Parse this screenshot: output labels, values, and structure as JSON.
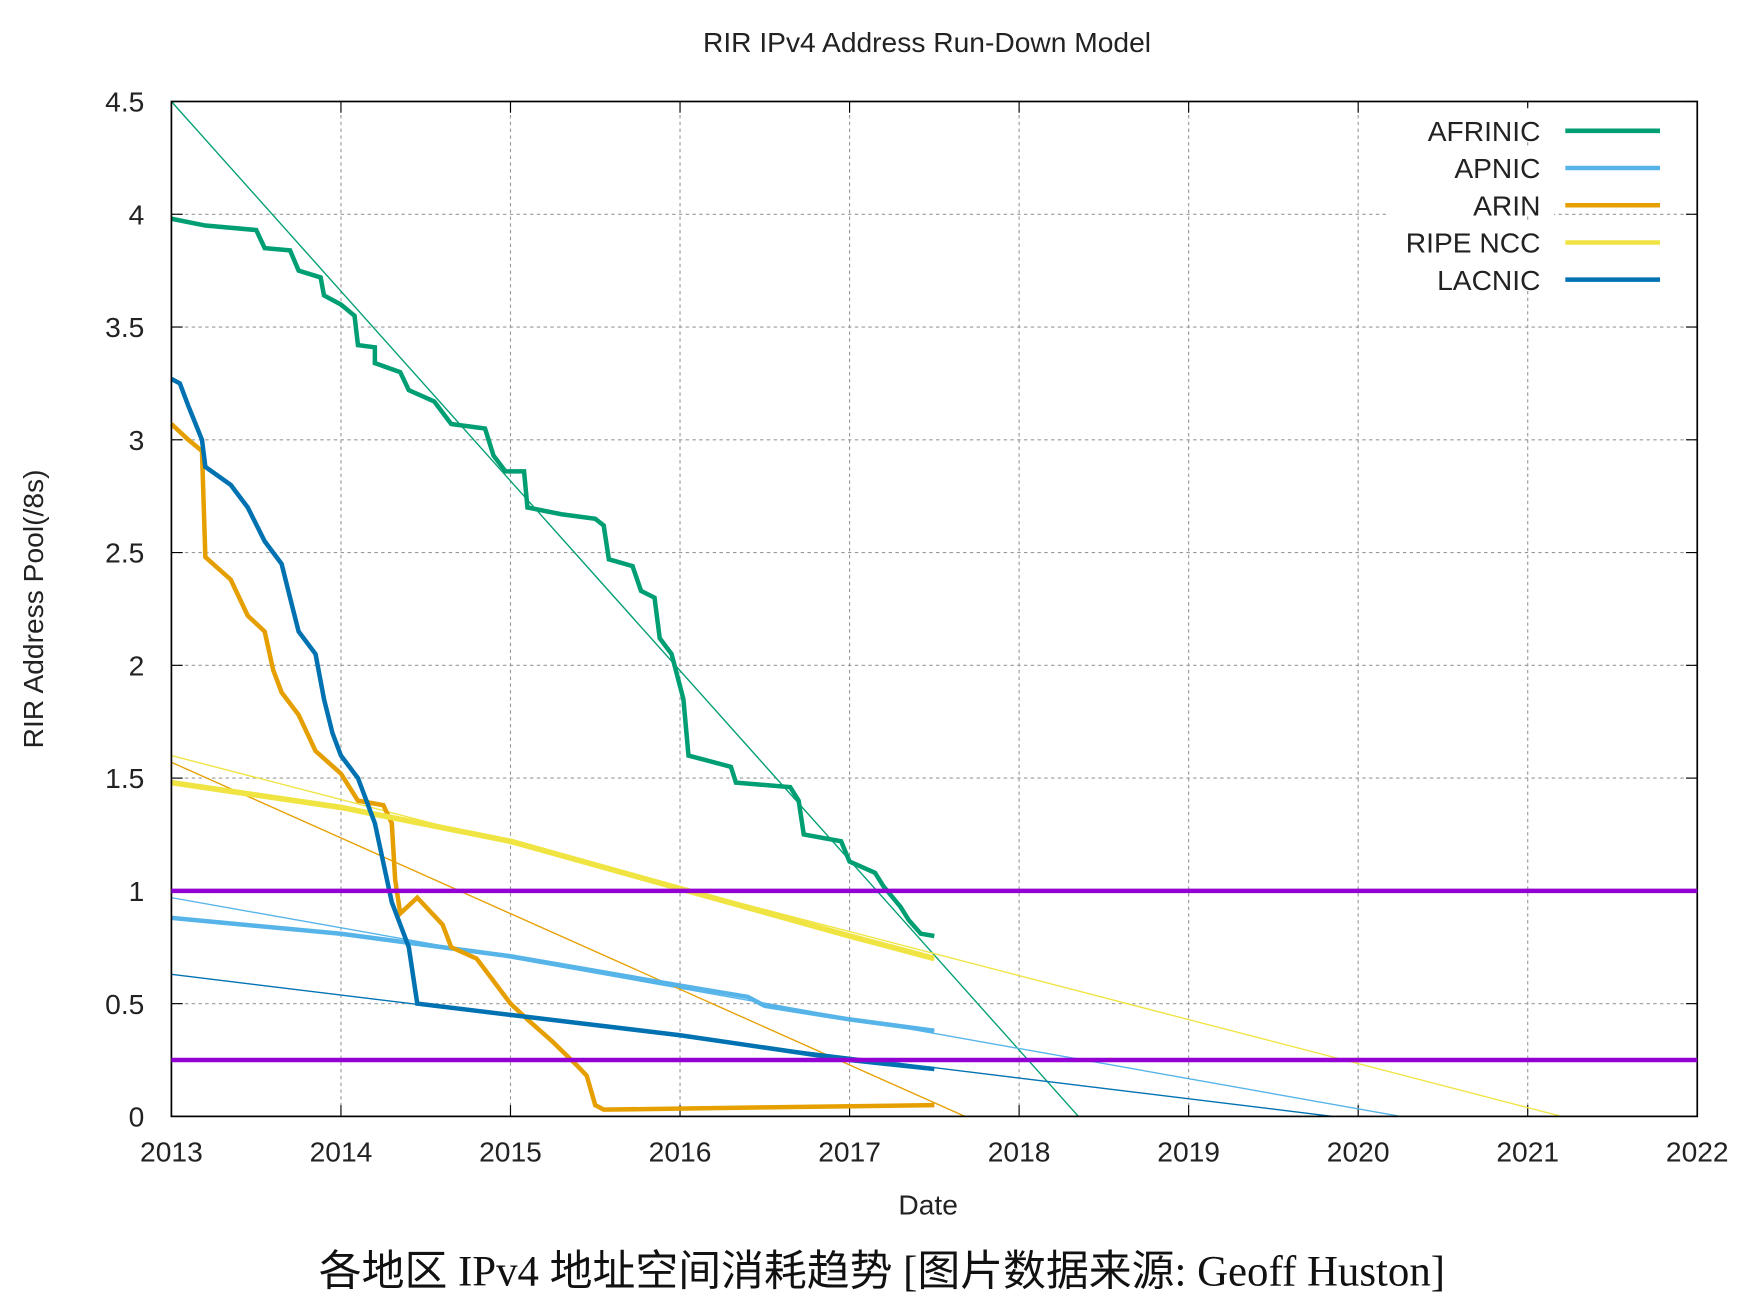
{
  "chart_data": {
    "type": "line",
    "title": "RIR IPv4 Address Run-Down Model",
    "xlabel": "Date",
    "ylabel": "RIR Address Pool(/8s)",
    "xlim": [
      2013,
      2022
    ],
    "ylim": [
      0,
      4.5
    ],
    "xticks": [
      "2013",
      "2014",
      "2015",
      "2016",
      "2017",
      "2018",
      "2019",
      "2020",
      "2021",
      "2022"
    ],
    "yticks": [
      "0",
      "0.5",
      "1",
      "1.5",
      "2",
      "2.5",
      "3",
      "3.5",
      "4",
      "4.5"
    ],
    "grid": true,
    "legend_position": "top-right",
    "series": [
      {
        "name": "AFRINIC",
        "color": "#009E73",
        "points": [
          [
            2013,
            3.98
          ],
          [
            2013.2,
            3.95
          ],
          [
            2013.5,
            3.93
          ],
          [
            2013.55,
            3.85
          ],
          [
            2013.7,
            3.84
          ],
          [
            2013.75,
            3.75
          ],
          [
            2013.88,
            3.72
          ],
          [
            2013.9,
            3.64
          ],
          [
            2014,
            3.6
          ],
          [
            2014.08,
            3.55
          ],
          [
            2014.1,
            3.42
          ],
          [
            2014.2,
            3.41
          ],
          [
            2014.2,
            3.34
          ],
          [
            2014.35,
            3.3
          ],
          [
            2014.4,
            3.22
          ],
          [
            2014.55,
            3.17
          ],
          [
            2014.65,
            3.07
          ],
          [
            2014.85,
            3.05
          ],
          [
            2014.9,
            2.93
          ],
          [
            2014.97,
            2.86
          ],
          [
            2015.08,
            2.86
          ],
          [
            2015.1,
            2.7
          ],
          [
            2015.3,
            2.67
          ],
          [
            2015.5,
            2.65
          ],
          [
            2015.55,
            2.62
          ],
          [
            2015.58,
            2.47
          ],
          [
            2015.72,
            2.44
          ],
          [
            2015.77,
            2.33
          ],
          [
            2015.85,
            2.3
          ],
          [
            2015.88,
            2.12
          ],
          [
            2015.95,
            2.05
          ],
          [
            2016.02,
            1.85
          ],
          [
            2016.05,
            1.6
          ],
          [
            2016.3,
            1.55
          ],
          [
            2016.33,
            1.48
          ],
          [
            2016.65,
            1.46
          ],
          [
            2016.7,
            1.4
          ],
          [
            2016.73,
            1.25
          ],
          [
            2016.95,
            1.22
          ],
          [
            2017.0,
            1.13
          ],
          [
            2017.15,
            1.08
          ],
          [
            2017.2,
            1.02
          ],
          [
            2017.3,
            0.93
          ],
          [
            2017.35,
            0.87
          ],
          [
            2017.42,
            0.81
          ],
          [
            2017.5,
            0.8
          ]
        ],
        "trend": [
          [
            2013,
            4.5
          ],
          [
            2018.35,
            0
          ]
        ]
      },
      {
        "name": "APNIC",
        "color": "#56B4E9",
        "points": [
          [
            2013,
            0.88
          ],
          [
            2014,
            0.81
          ],
          [
            2015,
            0.71
          ],
          [
            2016,
            0.58
          ],
          [
            2016.4,
            0.53
          ],
          [
            2016.5,
            0.49
          ],
          [
            2017,
            0.43
          ],
          [
            2017.5,
            0.38
          ]
        ],
        "trend": [
          [
            2013,
            0.97
          ],
          [
            2020.25,
            0
          ]
        ]
      },
      {
        "name": "ARIN",
        "color": "#E69F00",
        "points": [
          [
            2013,
            3.07
          ],
          [
            2013.1,
            3.0
          ],
          [
            2013.18,
            2.95
          ],
          [
            2013.2,
            2.48
          ],
          [
            2013.35,
            2.38
          ],
          [
            2013.45,
            2.22
          ],
          [
            2013.55,
            2.15
          ],
          [
            2013.6,
            1.98
          ],
          [
            2013.65,
            1.88
          ],
          [
            2013.75,
            1.78
          ],
          [
            2013.85,
            1.62
          ],
          [
            2014,
            1.52
          ],
          [
            2014.1,
            1.4
          ],
          [
            2014.25,
            1.38
          ],
          [
            2014.3,
            1.3
          ],
          [
            2014.32,
            1.05
          ],
          [
            2014.35,
            0.9
          ],
          [
            2014.45,
            0.97
          ],
          [
            2014.6,
            0.85
          ],
          [
            2014.65,
            0.75
          ],
          [
            2014.8,
            0.7
          ],
          [
            2014.95,
            0.55
          ],
          [
            2015,
            0.5
          ],
          [
            2015.1,
            0.43
          ],
          [
            2015.25,
            0.33
          ],
          [
            2015.4,
            0.22
          ],
          [
            2015.45,
            0.18
          ],
          [
            2015.5,
            0.05
          ],
          [
            2015.55,
            0.03
          ],
          [
            2016.5,
            0.04
          ],
          [
            2017.5,
            0.05
          ]
        ],
        "trend": [
          [
            2013,
            1.57
          ],
          [
            2017.68,
            0
          ]
        ]
      },
      {
        "name": "RIPE NCC",
        "color": "#F0E442",
        "points": [
          [
            2013,
            1.48
          ],
          [
            2014,
            1.37
          ],
          [
            2015,
            1.22
          ],
          [
            2016,
            1.01
          ],
          [
            2017,
            0.8
          ],
          [
            2017.5,
            0.7
          ]
        ],
        "trend": [
          [
            2013,
            1.6
          ],
          [
            2021.2,
            0
          ]
        ]
      },
      {
        "name": "LACNIC",
        "color": "#0072B2",
        "points": [
          [
            2013,
            3.27
          ],
          [
            2013.05,
            3.25
          ],
          [
            2013.1,
            3.15
          ],
          [
            2013.18,
            3.0
          ],
          [
            2013.2,
            2.88
          ],
          [
            2013.35,
            2.8
          ],
          [
            2013.45,
            2.7
          ],
          [
            2013.55,
            2.55
          ],
          [
            2013.65,
            2.45
          ],
          [
            2013.7,
            2.3
          ],
          [
            2013.75,
            2.15
          ],
          [
            2013.85,
            2.05
          ],
          [
            2013.9,
            1.85
          ],
          [
            2013.95,
            1.7
          ],
          [
            2014,
            1.6
          ],
          [
            2014.1,
            1.5
          ],
          [
            2014.2,
            1.3
          ],
          [
            2014.3,
            0.95
          ],
          [
            2014.4,
            0.75
          ],
          [
            2014.45,
            0.5
          ],
          [
            2015,
            0.45
          ],
          [
            2016,
            0.36
          ],
          [
            2017,
            0.25
          ],
          [
            2017.5,
            0.21
          ]
        ],
        "trend": [
          [
            2013,
            0.63
          ],
          [
            2019.85,
            0
          ]
        ]
      }
    ],
    "thresholds": [
      {
        "value": 1.0,
        "color": "#9400D3"
      },
      {
        "value": 0.25,
        "color": "#9400D3"
      }
    ]
  },
  "caption": "各地区 IPv4 地址空间消耗趋势  [图片数据来源: Geoff Huston]"
}
